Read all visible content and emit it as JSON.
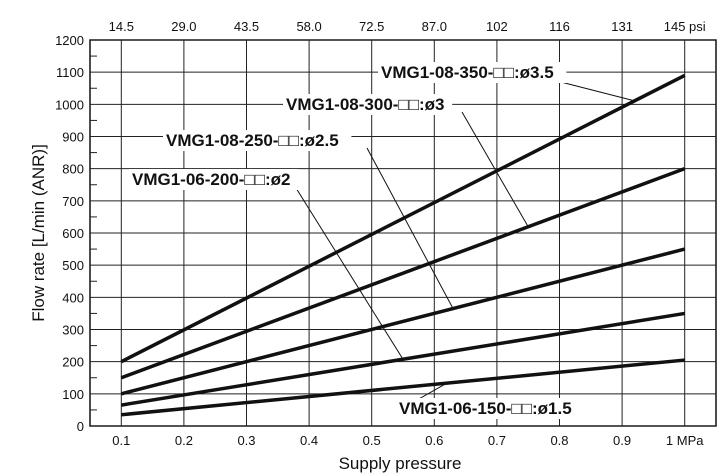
{
  "chart_data": {
    "type": "line",
    "xlabel": "Supply pressure",
    "ylabel": "Flow rate [L/min (ANR)]",
    "xlim": [
      0.05,
      1.05
    ],
    "ylim": [
      0,
      1200
    ],
    "x_ticks": [
      0.1,
      0.2,
      0.3,
      0.4,
      0.5,
      0.6,
      0.7,
      0.8,
      0.9,
      1.0
    ],
    "x_tick_labels": [
      "0.1",
      "0.2",
      "0.3",
      "0.4",
      "0.5",
      "0.6",
      "0.7",
      "0.8",
      "0.9",
      "1 MPa"
    ],
    "secondary_x_tick_labels": [
      "14.5",
      "29.0",
      "43.5",
      "58.0",
      "72.5",
      "87.0",
      "102",
      "116",
      "131",
      "145 psi"
    ],
    "y_ticks": [
      0,
      100,
      200,
      300,
      400,
      500,
      600,
      700,
      800,
      900,
      1000,
      1100,
      1200
    ],
    "grid": true,
    "series": [
      {
        "name": "VMG1-08-350-□□:ø3.5",
        "x": [
          0.1,
          1.0
        ],
        "y": [
          200,
          1090
        ]
      },
      {
        "name": "VMG1-08-300-□□:ø3",
        "x": [
          0.1,
          1.0
        ],
        "y": [
          150,
          800
        ]
      },
      {
        "name": "VMG1-08-250-□□:ø2.5",
        "x": [
          0.1,
          1.0
        ],
        "y": [
          100,
          550
        ]
      },
      {
        "name": "VMG1-06-200-□□:ø2",
        "x": [
          0.1,
          1.0
        ],
        "y": [
          65,
          350
        ]
      },
      {
        "name": "VMG1-06-150-□□:ø1.5",
        "x": [
          0.1,
          1.0
        ],
        "y": [
          35,
          205
        ]
      }
    ]
  }
}
